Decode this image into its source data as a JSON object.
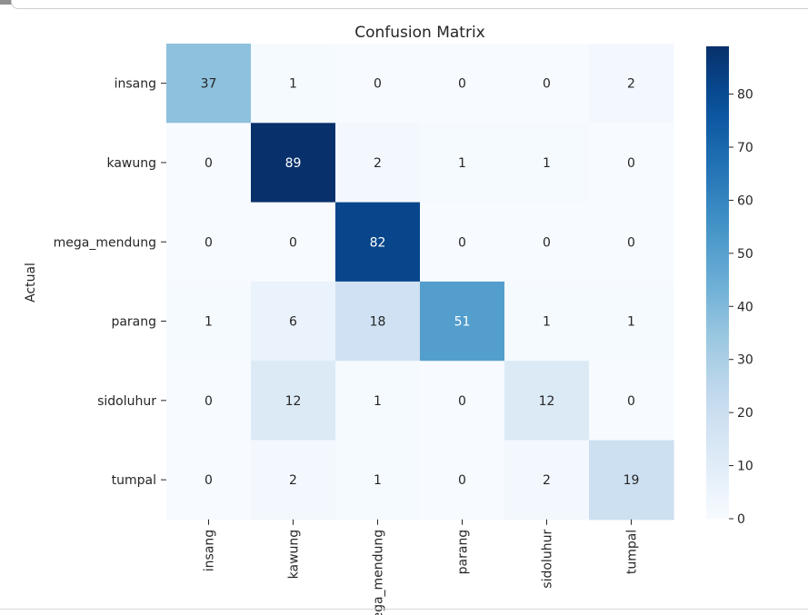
{
  "chart_data": {
    "type": "heatmap",
    "title": "Confusion Matrix",
    "xlabel": "",
    "ylabel": "Actual",
    "x_categories": [
      "insang",
      "kawung",
      "mega_mendung",
      "parang",
      "sidoluhur",
      "tumpal"
    ],
    "y_categories": [
      "insang",
      "kawung",
      "mega_mendung",
      "parang",
      "sidoluhur",
      "tumpal"
    ],
    "values": [
      [
        37,
        1,
        0,
        0,
        0,
        2
      ],
      [
        0,
        89,
        2,
        1,
        1,
        0
      ],
      [
        0,
        0,
        82,
        0,
        0,
        0
      ],
      [
        1,
        6,
        18,
        51,
        1,
        1
      ],
      [
        0,
        12,
        1,
        0,
        12,
        0
      ],
      [
        0,
        2,
        1,
        0,
        2,
        19
      ]
    ],
    "colormap": "Blues",
    "vmin": 0,
    "vmax": 89,
    "colorbar_ticks": [
      0,
      10,
      20,
      30,
      40,
      50,
      60,
      70,
      80
    ],
    "annotated": true,
    "grid": false
  }
}
